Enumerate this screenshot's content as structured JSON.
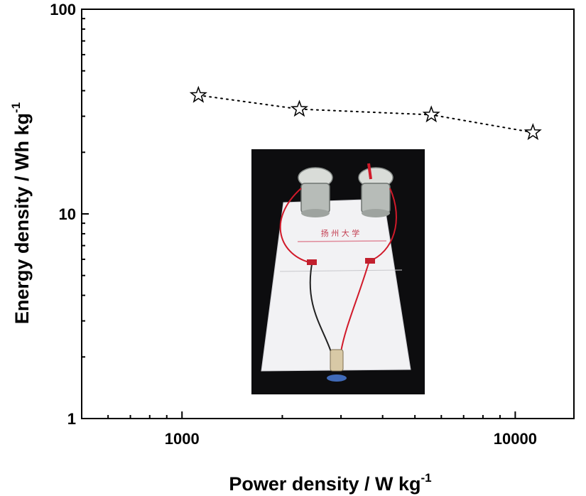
{
  "chart_data": {
    "type": "scatter",
    "title": "",
    "xlabel": "Power density / W kg",
    "xlabel_exponent": "-1",
    "ylabel": "Energy density / Wh kg",
    "ylabel_exponent": "-1",
    "xscale": "log",
    "yscale": "log",
    "xlim": [
      500,
      15000
    ],
    "ylim": [
      1,
      100
    ],
    "x_ticks": [
      {
        "value": 1000,
        "label": "1000"
      },
      {
        "value": 10000,
        "label": "10000"
      }
    ],
    "y_ticks": [
      {
        "value": 1,
        "label": "1"
      },
      {
        "value": 10,
        "label": "10"
      },
      {
        "value": 100,
        "label": "100"
      }
    ],
    "grid": false,
    "legend": "none",
    "series": [
      {
        "marker": "star-open",
        "line": "dotted",
        "color": "#000000",
        "x": [
          1120,
          2250,
          5600,
          11300
        ],
        "y": [
          38,
          32.5,
          30.5,
          25
        ]
      }
    ],
    "inset": {
      "kind": "photo",
      "description": "photo of two electrolyte cells wired to a small LED on a white card",
      "card_text": "扬 州 大 学"
    }
  }
}
